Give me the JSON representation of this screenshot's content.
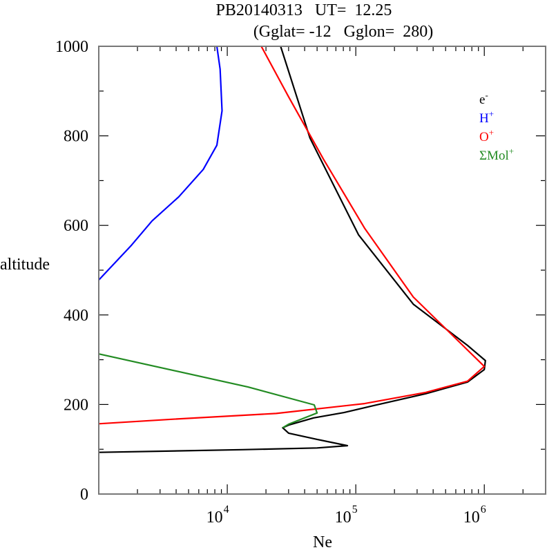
{
  "chart_data": {
    "type": "line",
    "title": {
      "line1": "PB20140313   UT=  12.25",
      "line2": "(Gglat= -12   Gglon=  280)"
    },
    "xlabel": "Ne",
    "ylabel": "altitude",
    "xscale": "log",
    "xlim": [
      1000,
      3000000
    ],
    "ylim": [
      0,
      1000
    ],
    "x_ticks": [
      {
        "value": 10000,
        "base": "10",
        "exp": "4"
      },
      {
        "value": 100000,
        "base": "10",
        "exp": "5"
      },
      {
        "value": 1000000,
        "base": "10",
        "exp": "6"
      }
    ],
    "y_ticks": [
      {
        "value": 0,
        "label": "0"
      },
      {
        "value": 200,
        "label": "200"
      },
      {
        "value": 400,
        "label": "400"
      },
      {
        "value": 600,
        "label": "600"
      },
      {
        "value": 800,
        "label": "800"
      },
      {
        "value": 1000,
        "label": "1000"
      }
    ],
    "y_minor_step": 100,
    "grid": false,
    "legend_position": "top-right",
    "series": [
      {
        "name": "e-",
        "label_base": "e",
        "label_sup": "-",
        "color": "#000000",
        "points": [
          [
            26000,
            1000
          ],
          [
            44000,
            795
          ],
          [
            105000,
            579
          ],
          [
            280000,
            424
          ],
          [
            740000,
            332
          ],
          [
            1020000,
            298
          ],
          [
            1000000,
            278
          ],
          [
            740000,
            250
          ],
          [
            350000,
            224
          ],
          [
            140000,
            198
          ],
          [
            81000,
            182
          ],
          [
            47000,
            170
          ],
          [
            30000,
            154
          ],
          [
            27000,
            148
          ],
          [
            30000,
            136
          ],
          [
            50000,
            122
          ],
          [
            86000,
            108
          ],
          [
            50000,
            103
          ],
          [
            13000,
            99
          ],
          [
            1000,
            93
          ]
        ]
      },
      {
        "name": "H+",
        "label_base": "H",
        "label_sup": "+",
        "color": "#0000ff",
        "points": [
          [
            8300,
            1000
          ],
          [
            8800,
            949
          ],
          [
            9100,
            856
          ],
          [
            8300,
            779
          ],
          [
            6500,
            725
          ],
          [
            4200,
            664
          ],
          [
            2600,
            610
          ],
          [
            1800,
            556
          ],
          [
            1000,
            478
          ]
        ]
      },
      {
        "name": "O+",
        "label_base": "O",
        "label_sup": "+",
        "color": "#ff0000",
        "points": [
          [
            18400,
            1000
          ],
          [
            30000,
            887
          ],
          [
            56000,
            748
          ],
          [
            117000,
            594
          ],
          [
            280000,
            440
          ],
          [
            1000000,
            285
          ],
          [
            740000,
            252
          ],
          [
            350000,
            227
          ],
          [
            117000,
            202
          ],
          [
            24000,
            180
          ],
          [
            3700,
            167
          ],
          [
            1000,
            157
          ]
        ]
      },
      {
        "name": "ΣMol+",
        "label_base": "ΣMol",
        "label_sup": "+",
        "color": "#228b22",
        "points": [
          [
            1000,
            313
          ],
          [
            14500,
            239
          ],
          [
            47500,
            199
          ],
          [
            50000,
            181
          ],
          [
            30000,
            156
          ],
          [
            27000,
            148
          ]
        ]
      }
    ]
  }
}
